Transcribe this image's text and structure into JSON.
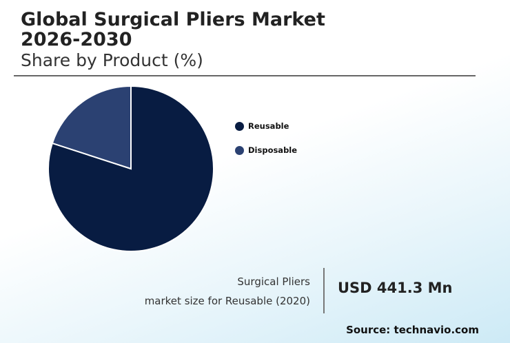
{
  "header": {
    "title_line1": "Global Surgical Pliers Market",
    "title_line2": "2026-2030",
    "subtitle": "Share by Product (%)"
  },
  "chart_data": {
    "type": "pie",
    "title": "Global Surgical Pliers Market 2026-2030",
    "subtitle": "Share by Product (%)",
    "categories": [
      "Reusable",
      "Disposable"
    ],
    "values": [
      80,
      20
    ],
    "colors": [
      "#081c42",
      "#2b4172"
    ],
    "legend_position": "right"
  },
  "footer": {
    "caption_line1": "Surgical Pliers",
    "caption_line2": "market size for Reusable (2020)",
    "value": "USD 441.3 Mn",
    "source": "Source: technavio.com"
  }
}
